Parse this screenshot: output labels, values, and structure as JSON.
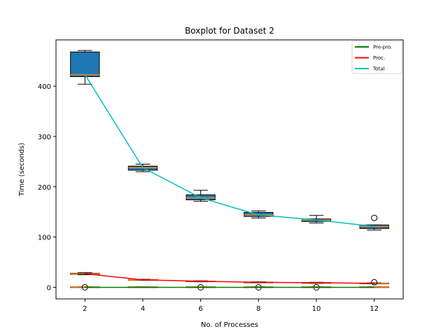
{
  "chart_data": {
    "type": "boxplot",
    "title": "Boxplot for Dataset 2",
    "xlabel": "No. of Processes",
    "ylabel": "Time (seconds)",
    "x": [
      2,
      4,
      6,
      8,
      10,
      12
    ],
    "xticks": [
      "2",
      "4",
      "6",
      "8",
      "10",
      "12"
    ],
    "yticks": [
      0,
      100,
      200,
      300,
      400
    ],
    "ylim": [
      -23,
      492
    ],
    "xlim": [
      1,
      13
    ],
    "grid": false,
    "legend_position": "top-right",
    "box_color": "#1f77b4",
    "median_color": "#ff7f0e",
    "boxes": [
      {
        "name": "Total",
        "stats": [
          {
            "x": 2,
            "whislo": 404,
            "q1": 419,
            "med": 423,
            "q3": 468,
            "whishi": 471,
            "fliers": []
          },
          {
            "x": 4,
            "whislo": 230,
            "q1": 233,
            "med": 238,
            "q3": 241,
            "whishi": 245,
            "fliers": []
          },
          {
            "x": 6,
            "whislo": 171,
            "q1": 174,
            "med": 178,
            "q3": 184,
            "whishi": 193,
            "fliers": []
          },
          {
            "x": 8,
            "whislo": 138,
            "q1": 141,
            "med": 144,
            "q3": 149,
            "whishi": 152,
            "fliers": []
          },
          {
            "x": 10,
            "whislo": 128,
            "q1": 131,
            "med": 134,
            "q3": 136,
            "whishi": 143,
            "fliers": []
          },
          {
            "x": 12,
            "whislo": 114,
            "q1": 117,
            "med": 121,
            "q3": 124,
            "whishi": 124,
            "fliers": [
              138
            ]
          }
        ]
      },
      {
        "name": "Proc.",
        "stats": [
          {
            "x": 2,
            "whislo": 25,
            "q1": 26,
            "med": 27,
            "q3": 28,
            "whishi": 29,
            "fliers": []
          },
          {
            "x": 4,
            "whislo": 14,
            "q1": 14.5,
            "med": 15,
            "q3": 15.5,
            "whishi": 16,
            "fliers": []
          },
          {
            "x": 6,
            "whislo": 11,
            "q1": 11.5,
            "med": 12,
            "q3": 12.5,
            "whishi": 13,
            "fliers": []
          },
          {
            "x": 8,
            "whislo": 9,
            "q1": 9.5,
            "med": 10,
            "q3": 10.5,
            "whishi": 11,
            "fliers": []
          },
          {
            "x": 10,
            "whislo": 8,
            "q1": 8.5,
            "med": 9,
            "q3": 9.5,
            "whishi": 10,
            "fliers": []
          },
          {
            "x": 12,
            "whislo": 7,
            "q1": 7.5,
            "med": 8,
            "q3": 8.5,
            "whishi": 9,
            "fliers": [
              10
            ]
          }
        ]
      },
      {
        "name": "Pre-pro.",
        "stats": [
          {
            "x": 2,
            "whislo": 0,
            "q1": 0,
            "med": 0.5,
            "q3": 1,
            "whishi": 1,
            "fliers": [
              0
            ]
          },
          {
            "x": 4,
            "whislo": 0,
            "q1": 0,
            "med": 0.5,
            "q3": 1,
            "whishi": 1,
            "fliers": []
          },
          {
            "x": 6,
            "whislo": 0,
            "q1": 0,
            "med": 0.5,
            "q3": 1,
            "whishi": 1,
            "fliers": [
              0
            ]
          },
          {
            "x": 8,
            "whislo": 0,
            "q1": 0,
            "med": 0.5,
            "q3": 1,
            "whishi": 1,
            "fliers": [
              0
            ]
          },
          {
            "x": 10,
            "whislo": 0,
            "q1": 0,
            "med": 0.5,
            "q3": 1,
            "whishi": 1,
            "fliers": [
              0
            ]
          },
          {
            "x": 12,
            "whislo": 0,
            "q1": 0,
            "med": 0.5,
            "q3": 1,
            "whishi": 1,
            "fliers": []
          }
        ]
      }
    ],
    "series": [
      {
        "name": "Pre-pro.",
        "type": "line",
        "color": "#008000",
        "x": [
          2,
          4,
          6,
          8,
          10,
          12
        ],
        "values": [
          0,
          0,
          0,
          0,
          0,
          0
        ]
      },
      {
        "name": "Proc.",
        "type": "line",
        "color": "#ff0000",
        "x": [
          2,
          4,
          6,
          8,
          10,
          12
        ],
        "values": [
          27,
          15,
          12,
          10,
          9,
          8
        ]
      },
      {
        "name": "Total",
        "type": "line",
        "color": "#00bfbf",
        "x": [
          2,
          4,
          6,
          8,
          10,
          12
        ],
        "values": [
          423,
          238,
          178,
          144,
          134,
          121
        ]
      }
    ]
  }
}
